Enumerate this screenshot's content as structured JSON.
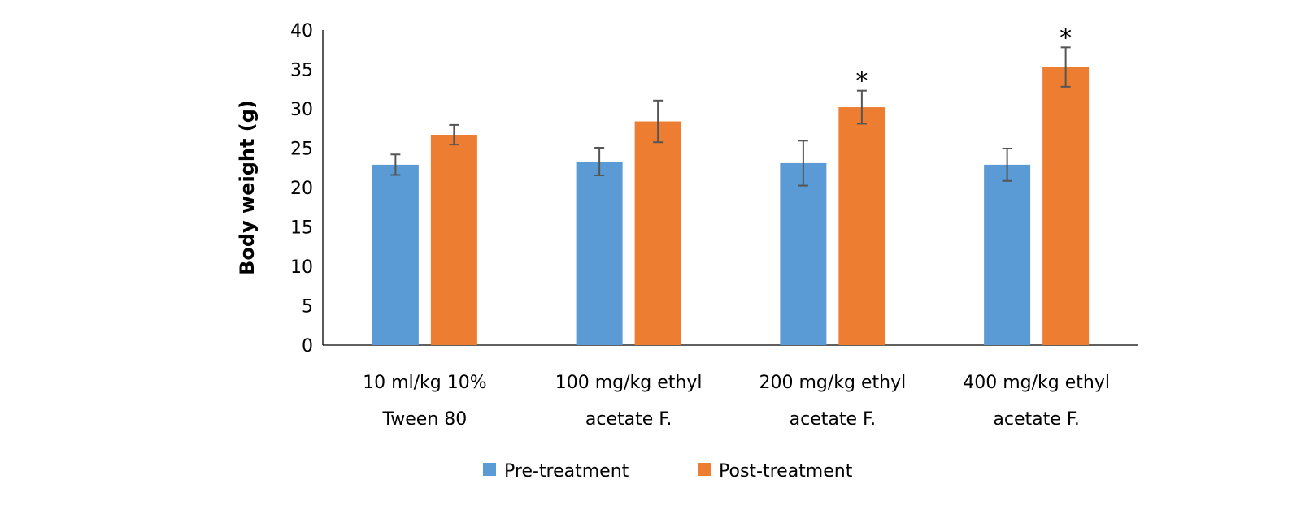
{
  "chart_data": {
    "type": "bar",
    "title": "",
    "xlabel": "",
    "ylabel": "Body weight (g)",
    "ylim": [
      0,
      40
    ],
    "yticks": [
      0,
      5,
      10,
      15,
      20,
      25,
      30,
      35,
      40
    ],
    "grid": false,
    "legend_position": "bottom",
    "categories": [
      [
        "10 ml/kg 10%",
        "Tween 80"
      ],
      [
        "100 mg/kg ethyl",
        "acetate F."
      ],
      [
        "200 mg/kg ethyl",
        "acetate F."
      ],
      [
        "400 mg/kg ethyl",
        "acetate F."
      ]
    ],
    "series": [
      {
        "name": "Pre-treatment",
        "color": "#5b9bd5",
        "values": [
          22.9,
          23.3,
          23.1,
          22.9
        ],
        "errors": [
          1.3,
          1.75,
          2.85,
          2.05
        ],
        "significance": [
          "",
          "",
          "",
          ""
        ]
      },
      {
        "name": "Post-treatment",
        "color": "#ed7d31",
        "values": [
          26.7,
          28.4,
          30.2,
          35.3
        ],
        "errors": [
          1.25,
          2.65,
          2.1,
          2.5
        ],
        "significance": [
          "",
          "",
          "*",
          "*"
        ]
      }
    ]
  }
}
